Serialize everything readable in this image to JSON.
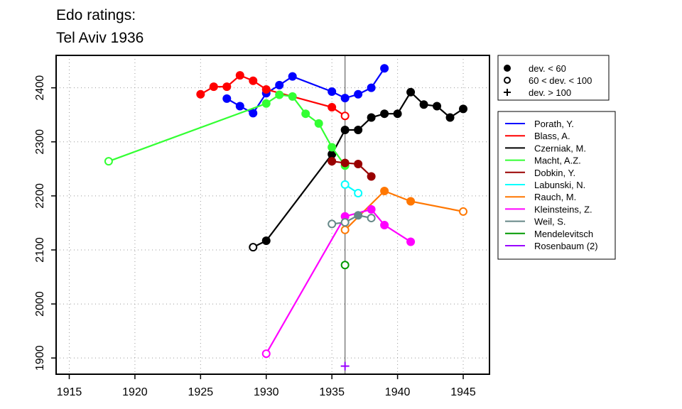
{
  "chart_data": {
    "type": "line",
    "title_lines": [
      "Edo ratings:",
      "Tel Aviv 1936"
    ],
    "xlabel": "",
    "ylabel": "",
    "xlim": [
      1914,
      1947
    ],
    "ylim": [
      1870,
      2460
    ],
    "x_ticks": [
      1915,
      1920,
      1925,
      1930,
      1935,
      1940,
      1945
    ],
    "y_ticks": [
      1900,
      2000,
      2100,
      2200,
      2300,
      2400
    ],
    "vline_x": 1936,
    "grid": "dotted",
    "marker_legend": [
      {
        "label": "dev. < 60",
        "marker": "filled"
      },
      {
        "label": "60 < dev. < 100",
        "marker": "open"
      },
      {
        "label": "dev. > 100",
        "marker": "plus"
      }
    ],
    "series": [
      {
        "name": "Porath, Y.",
        "color": "#0000ff",
        "points": [
          [
            1927,
            2380,
            "filled"
          ],
          [
            1928,
            2366,
            "filled"
          ],
          [
            1929,
            2353,
            "filled"
          ],
          [
            1930,
            2390,
            "filled"
          ],
          [
            1931,
            2405,
            "filled"
          ],
          [
            1932,
            2421,
            "filled"
          ],
          [
            1935,
            2393,
            "filled"
          ],
          [
            1936,
            2381,
            "filled"
          ],
          [
            1937,
            2388,
            "filled"
          ],
          [
            1938,
            2400,
            "filled"
          ],
          [
            1939,
            2436,
            "filled"
          ]
        ]
      },
      {
        "name": "Blass, A.",
        "color": "#ff0000",
        "points": [
          [
            1925,
            2388,
            "filled"
          ],
          [
            1926,
            2402,
            "filled"
          ],
          [
            1927,
            2402,
            "filled"
          ],
          [
            1928,
            2423,
            "filled"
          ],
          [
            1929,
            2413,
            "filled"
          ],
          [
            1930,
            2397,
            "filled"
          ],
          [
            1935,
            2364,
            "filled"
          ],
          [
            1936,
            2348,
            "open"
          ]
        ]
      },
      {
        "name": "Czerniak, M.",
        "color": "#000000",
        "points": [
          [
            1929,
            2105,
            "open"
          ],
          [
            1930,
            2117,
            "filled"
          ],
          [
            1935,
            2277,
            "filled"
          ],
          [
            1936,
            2322,
            "filled"
          ],
          [
            1937,
            2322,
            "filled"
          ],
          [
            1938,
            2345,
            "filled"
          ],
          [
            1939,
            2352,
            "filled"
          ],
          [
            1940,
            2352,
            "filled"
          ],
          [
            1941,
            2392,
            "filled"
          ],
          [
            1942,
            2369,
            "filled"
          ],
          [
            1943,
            2366,
            "filled"
          ],
          [
            1944,
            2345,
            "filled"
          ],
          [
            1945,
            2361,
            "filled"
          ]
        ]
      },
      {
        "name": "Macht, A.Z.",
        "color": "#33ff33",
        "points": [
          [
            1918,
            2264,
            "open"
          ],
          [
            1930,
            2371,
            "filled"
          ],
          [
            1931,
            2387,
            "filled"
          ],
          [
            1932,
            2384,
            "filled"
          ],
          [
            1933,
            2352,
            "filled"
          ],
          [
            1934,
            2334,
            "filled"
          ],
          [
            1935,
            2290,
            "filled"
          ],
          [
            1936,
            2256,
            "filled"
          ]
        ]
      },
      {
        "name": "Dobkin, Y.",
        "color": "#990000",
        "points": [
          [
            1935,
            2264,
            "filled"
          ],
          [
            1936,
            2261,
            "filled"
          ],
          [
            1937,
            2259,
            "filled"
          ],
          [
            1938,
            2236,
            "filled"
          ]
        ]
      },
      {
        "name": "Labunski, N.",
        "color": "#00ffff",
        "points": [
          [
            1936,
            2221,
            "open"
          ],
          [
            1937,
            2205,
            "open"
          ]
        ]
      },
      {
        "name": "Rauch, M.",
        "color": "#ff7700",
        "points": [
          [
            1936,
            2137,
            "open"
          ],
          [
            1939,
            2209,
            "filled"
          ],
          [
            1941,
            2190,
            "filled"
          ],
          [
            1945,
            2171,
            "open"
          ]
        ]
      },
      {
        "name": "Kleinsteins, Z.",
        "color": "#ff00ff",
        "points": [
          [
            1930,
            1908,
            "open"
          ],
          [
            1936,
            2162,
            "filled"
          ],
          [
            1938,
            2175,
            "filled"
          ],
          [
            1939,
            2146,
            "filled"
          ],
          [
            1941,
            2115,
            "filled"
          ]
        ]
      },
      {
        "name": "Weil, S.",
        "color": "#668888",
        "points": [
          [
            1935,
            2148,
            "open"
          ],
          [
            1936,
            2151,
            "open"
          ],
          [
            1937,
            2164,
            "filled"
          ],
          [
            1938,
            2159,
            "open"
          ]
        ]
      },
      {
        "name": "Mendelevitsch",
        "color": "#009900",
        "points": [
          [
            1936,
            2072,
            "open"
          ]
        ]
      },
      {
        "name": "Rosenbaum (2)",
        "color": "#9900ff",
        "points": [
          [
            1936,
            1885,
            "plus"
          ]
        ]
      }
    ]
  }
}
